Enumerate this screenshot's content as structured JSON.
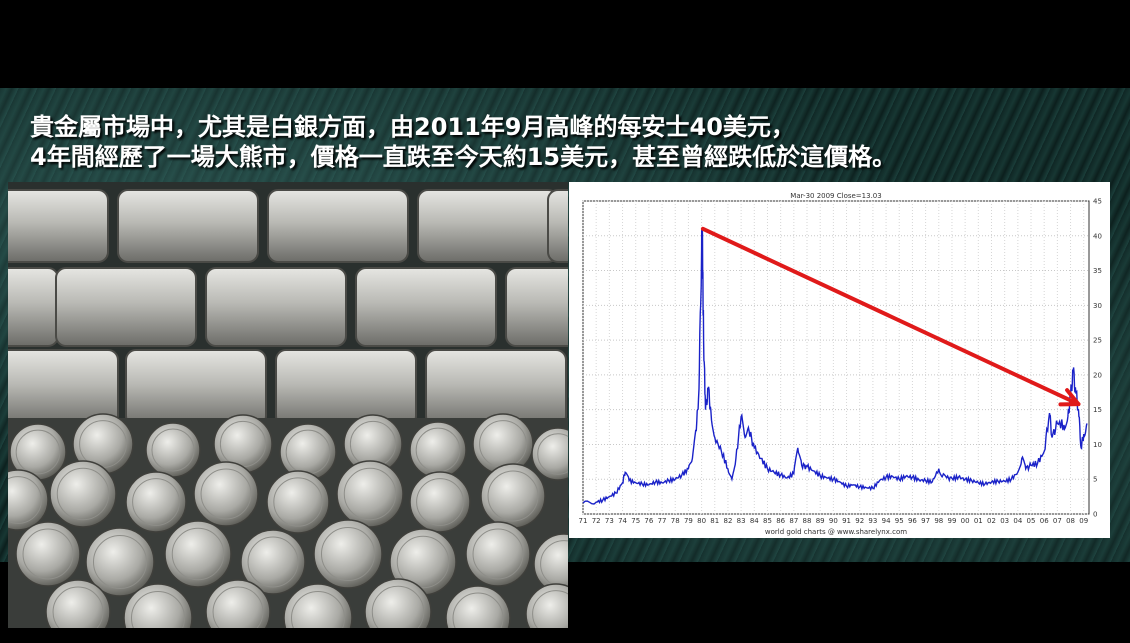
{
  "headline": {
    "line1": "貴金屬市場中，尤其是白銀方面，由2011年9月高峰的每安士40美元，",
    "line2": "4年間經歷了一場大熊市，價格一直跌至今天約15美元，甚至曾經跌低於這價格。"
  },
  "photo": {
    "subject": "silver-bars-and-coins"
  },
  "chart_data": {
    "type": "line",
    "title": "Mar-30 2009   Close=13.03",
    "footer": "world gold charts @ www.sharelynx.com",
    "x_tick_labels": [
      "71",
      "72",
      "73",
      "74",
      "75",
      "76",
      "77",
      "78",
      "79",
      "80",
      "81",
      "82",
      "83",
      "84",
      "85",
      "86",
      "87",
      "88",
      "89",
      "90",
      "91",
      "92",
      "93",
      "94",
      "95",
      "96",
      "97",
      "98",
      "99",
      "00",
      "01",
      "02",
      "03",
      "04",
      "05",
      "06",
      "07",
      "08",
      "09"
    ],
    "y_tick_labels": [
      "0",
      "5",
      "10",
      "15",
      "20",
      "25",
      "30",
      "35",
      "40",
      "45"
    ],
    "ylim": [
      0,
      45
    ],
    "y_axis_side": "right",
    "grid": true,
    "line_color": "#1a22c8",
    "arrow_color": "#e01a1a",
    "series": [
      {
        "values": [
          [
            1971.0,
            1.6
          ],
          [
            1972.0,
            1.7
          ],
          [
            1972.5,
            2.0
          ],
          [
            1973.0,
            2.5
          ],
          [
            1973.5,
            3.0
          ],
          [
            1974.0,
            4.5
          ],
          [
            1974.2,
            6.0
          ],
          [
            1974.5,
            4.8
          ],
          [
            1975.0,
            4.5
          ],
          [
            1975.5,
            4.3
          ],
          [
            1976.0,
            4.2
          ],
          [
            1976.5,
            4.6
          ],
          [
            1977.0,
            4.5
          ],
          [
            1977.5,
            4.8
          ],
          [
            1978.0,
            5.0
          ],
          [
            1978.5,
            5.6
          ],
          [
            1979.0,
            6.5
          ],
          [
            1979.3,
            8.0
          ],
          [
            1979.6,
            12.0
          ],
          [
            1979.8,
            18.0
          ],
          [
            1980.0,
            38.0
          ],
          [
            1980.05,
            41.0
          ],
          [
            1980.15,
            25.0
          ],
          [
            1980.3,
            15.0
          ],
          [
            1980.5,
            18.0
          ],
          [
            1980.7,
            15.0
          ],
          [
            1981.0,
            11.0
          ],
          [
            1981.5,
            9.0
          ],
          [
            1982.0,
            6.5
          ],
          [
            1982.3,
            5.0
          ],
          [
            1982.6,
            8.0
          ],
          [
            1983.0,
            14.0
          ],
          [
            1983.3,
            11.0
          ],
          [
            1983.6,
            12.0
          ],
          [
            1984.0,
            9.5
          ],
          [
            1984.5,
            8.0
          ],
          [
            1985.0,
            6.5
          ],
          [
            1985.5,
            6.0
          ],
          [
            1986.0,
            5.6
          ],
          [
            1986.5,
            5.2
          ],
          [
            1987.0,
            5.8
          ],
          [
            1987.3,
            9.5
          ],
          [
            1987.6,
            7.0
          ],
          [
            1988.0,
            6.8
          ],
          [
            1988.5,
            6.2
          ],
          [
            1989.0,
            5.5
          ],
          [
            1989.5,
            5.2
          ],
          [
            1990.0,
            5.0
          ],
          [
            1990.5,
            4.6
          ],
          [
            1991.0,
            4.0
          ],
          [
            1991.5,
            4.2
          ],
          [
            1992.0,
            3.9
          ],
          [
            1992.5,
            3.8
          ],
          [
            1993.0,
            3.7
          ],
          [
            1993.5,
            4.8
          ],
          [
            1994.0,
            5.3
          ],
          [
            1994.5,
            5.4
          ],
          [
            1995.0,
            5.0
          ],
          [
            1995.5,
            5.4
          ],
          [
            1996.0,
            5.3
          ],
          [
            1996.5,
            4.9
          ],
          [
            1997.0,
            4.8
          ],
          [
            1997.5,
            4.6
          ],
          [
            1998.0,
            6.5
          ],
          [
            1998.3,
            5.5
          ],
          [
            1998.6,
            5.2
          ],
          [
            1999.0,
            5.1
          ],
          [
            1999.5,
            5.3
          ],
          [
            2000.0,
            5.0
          ],
          [
            2000.5,
            4.8
          ],
          [
            2001.0,
            4.5
          ],
          [
            2001.5,
            4.3
          ],
          [
            2002.0,
            4.6
          ],
          [
            2002.5,
            4.7
          ],
          [
            2003.0,
            4.7
          ],
          [
            2003.5,
            5.0
          ],
          [
            2004.0,
            6.0
          ],
          [
            2004.3,
            8.0
          ],
          [
            2004.6,
            6.5
          ],
          [
            2005.0,
            7.0
          ],
          [
            2005.5,
            7.3
          ],
          [
            2006.0,
            9.0
          ],
          [
            2006.4,
            14.5
          ],
          [
            2006.6,
            11.0
          ],
          [
            2007.0,
            13.0
          ],
          [
            2007.5,
            12.8
          ],
          [
            2007.8,
            14.0
          ],
          [
            2008.0,
            17.0
          ],
          [
            2008.2,
            20.5
          ],
          [
            2008.4,
            17.5
          ],
          [
            2008.6,
            15.0
          ],
          [
            2008.8,
            9.5
          ],
          [
            2009.0,
            11.5
          ],
          [
            2009.25,
            13.03
          ]
        ]
      }
    ],
    "annotations": [
      {
        "type": "arrow",
        "from": [
          1980.1,
          41.0
        ],
        "to": [
          2008.6,
          15.8
        ]
      }
    ]
  }
}
